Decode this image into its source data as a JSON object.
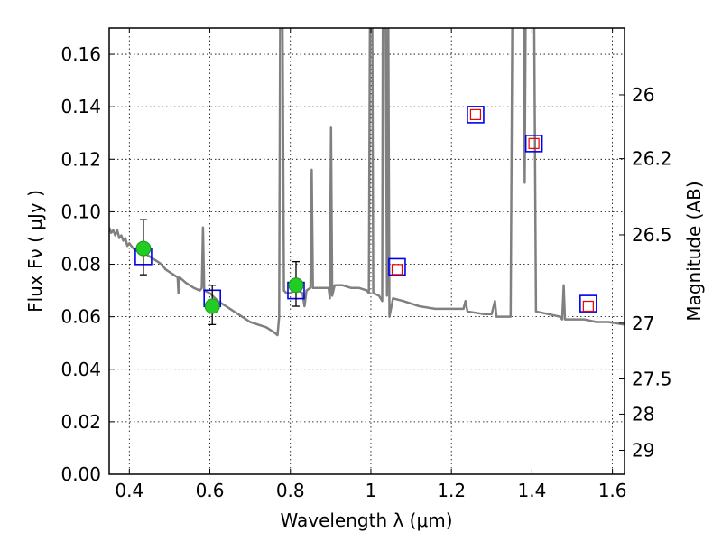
{
  "chart_data": {
    "type": "scatter",
    "xlabel": "Wavelength  λ (μm)",
    "ylabel_left": "Flux  Fν  ( μJy )",
    "ylabel_right": "Magnitude (AB)",
    "xlim": [
      0.35,
      1.63
    ],
    "ylim": [
      0.0,
      0.17
    ],
    "xticks": [
      0.4,
      0.6,
      0.8,
      1.0,
      1.2,
      1.4,
      1.6
    ],
    "xtick_labels": [
      "0.4",
      "0.6",
      "0.8",
      "1",
      "1.2",
      "1.4",
      "1.6"
    ],
    "yticks": [
      0.0,
      0.02,
      0.04,
      0.06,
      0.08,
      0.1,
      0.12,
      0.14,
      0.16
    ],
    "ytick_labels": [
      "0.00",
      "0.02",
      "0.04",
      "0.06",
      "0.08",
      "0.10",
      "0.12",
      "0.14",
      "0.16"
    ],
    "right_axis_ticks": [
      {
        "mag": 26.0,
        "label": "26"
      },
      {
        "mag": 26.2,
        "label": "26.2"
      },
      {
        "mag": 26.5,
        "label": "26.5"
      },
      {
        "mag": 27.0,
        "label": "27"
      },
      {
        "mag": 27.5,
        "label": "27.5"
      },
      {
        "mag": 28.0,
        "label": "28"
      },
      {
        "mag": 29.0,
        "label": "29"
      }
    ],
    "grid": true,
    "series": [
      {
        "kind": "observed",
        "marker": "filled-circle",
        "color": "#22cc22",
        "points": [
          {
            "x": 0.435,
            "y": 0.086,
            "yerr_low": 0.01,
            "yerr_high": 0.011
          },
          {
            "x": 0.606,
            "y": 0.064,
            "yerr_low": 0.007,
            "yerr_high": 0.008
          },
          {
            "x": 0.814,
            "y": 0.072,
            "yerr_low": 0.008,
            "yerr_high": 0.009
          }
        ]
      },
      {
        "kind": "model-band",
        "marker": "open-square",
        "color": "#0000ee",
        "points": [
          {
            "x": 0.435,
            "y": 0.083
          },
          {
            "x": 0.606,
            "y": 0.067
          },
          {
            "x": 0.814,
            "y": 0.07
          },
          {
            "x": 1.065,
            "y": 0.079
          },
          {
            "x": 1.26,
            "y": 0.137
          },
          {
            "x": 1.405,
            "y": 0.126
          },
          {
            "x": 1.54,
            "y": 0.065
          }
        ]
      },
      {
        "kind": "upper-limit",
        "marker": "open-square-small",
        "color": "#ee0000",
        "points": [
          {
            "x": 1.065,
            "y": 0.078
          },
          {
            "x": 1.26,
            "y": 0.137
          },
          {
            "x": 1.405,
            "y": 0.126
          },
          {
            "x": 1.54,
            "y": 0.064
          }
        ]
      }
    ],
    "spectrum": {
      "color": "#808080",
      "points": [
        [
          0.35,
          0.094
        ],
        [
          0.355,
          0.092
        ],
        [
          0.36,
          0.093
        ],
        [
          0.365,
          0.091
        ],
        [
          0.37,
          0.093
        ],
        [
          0.375,
          0.09
        ],
        [
          0.38,
          0.091
        ],
        [
          0.385,
          0.089
        ],
        [
          0.39,
          0.09
        ],
        [
          0.395,
          0.087
        ],
        [
          0.4,
          0.088
        ],
        [
          0.41,
          0.086
        ],
        [
          0.42,
          0.085
        ],
        [
          0.43,
          0.084
        ],
        [
          0.44,
          0.084
        ],
        [
          0.45,
          0.083
        ],
        [
          0.46,
          0.082
        ],
        [
          0.47,
          0.081
        ],
        [
          0.48,
          0.08
        ],
        [
          0.49,
          0.078
        ],
        [
          0.5,
          0.077
        ],
        [
          0.51,
          0.076
        ],
        [
          0.52,
          0.075
        ],
        [
          0.522,
          0.069
        ],
        [
          0.525,
          0.075
        ],
        [
          0.54,
          0.073
        ],
        [
          0.56,
          0.071
        ],
        [
          0.575,
          0.07
        ],
        [
          0.58,
          0.071
        ],
        [
          0.583,
          0.094
        ],
        [
          0.586,
          0.07
        ],
        [
          0.6,
          0.069
        ],
        [
          0.62,
          0.066
        ],
        [
          0.64,
          0.064
        ],
        [
          0.66,
          0.062
        ],
        [
          0.68,
          0.06
        ],
        [
          0.7,
          0.058
        ],
        [
          0.72,
          0.057
        ],
        [
          0.74,
          0.056
        ],
        [
          0.76,
          0.054
        ],
        [
          0.768,
          0.053
        ],
        [
          0.772,
          0.06
        ],
        [
          0.775,
          0.19
        ],
        [
          0.78,
          0.19
        ],
        [
          0.784,
          0.07
        ],
        [
          0.79,
          0.069
        ],
        [
          0.8,
          0.069
        ],
        [
          0.81,
          0.07
        ],
        [
          0.82,
          0.07
        ],
        [
          0.83,
          0.069
        ],
        [
          0.835,
          0.064
        ],
        [
          0.84,
          0.07
        ],
        [
          0.85,
          0.071
        ],
        [
          0.853,
          0.116
        ],
        [
          0.856,
          0.071
        ],
        [
          0.87,
          0.071
        ],
        [
          0.88,
          0.071
        ],
        [
          0.895,
          0.071
        ],
        [
          0.898,
          0.067
        ],
        [
          0.901,
          0.132
        ],
        [
          0.904,
          0.068
        ],
        [
          0.91,
          0.072
        ],
        [
          0.93,
          0.072
        ],
        [
          0.95,
          0.071
        ],
        [
          0.97,
          0.071
        ],
        [
          0.99,
          0.07
        ],
        [
          0.995,
          0.069
        ],
        [
          0.998,
          0.19
        ],
        [
          1.003,
          0.19
        ],
        [
          1.006,
          0.069
        ],
        [
          1.02,
          0.068
        ],
        [
          1.028,
          0.066
        ],
        [
          1.03,
          0.19
        ],
        [
          1.036,
          0.19
        ],
        [
          1.04,
          0.068
        ],
        [
          1.043,
          0.19
        ],
        [
          1.046,
          0.06
        ],
        [
          1.055,
          0.067
        ],
        [
          1.08,
          0.066
        ],
        [
          1.1,
          0.065
        ],
        [
          1.12,
          0.064
        ],
        [
          1.16,
          0.063
        ],
        [
          1.2,
          0.063
        ],
        [
          1.23,
          0.063
        ],
        [
          1.235,
          0.066
        ],
        [
          1.24,
          0.062
        ],
        [
          1.28,
          0.061
        ],
        [
          1.3,
          0.061
        ],
        [
          1.308,
          0.066
        ],
        [
          1.312,
          0.06
        ],
        [
          1.34,
          0.06
        ],
        [
          1.347,
          0.06
        ],
        [
          1.352,
          0.19
        ],
        [
          1.355,
          0.19
        ],
        [
          1.36,
          0.19
        ],
        [
          1.38,
          0.19
        ],
        [
          1.382,
          0.111
        ],
        [
          1.385,
          0.19
        ],
        [
          1.4,
          0.19
        ],
        [
          1.405,
          0.19
        ],
        [
          1.41,
          0.062
        ],
        [
          1.44,
          0.061
        ],
        [
          1.47,
          0.06
        ],
        [
          1.475,
          0.059
        ],
        [
          1.479,
          0.072
        ],
        [
          1.482,
          0.059
        ],
        [
          1.5,
          0.059
        ],
        [
          1.53,
          0.059
        ],
        [
          1.56,
          0.058
        ],
        [
          1.59,
          0.058
        ],
        [
          1.63,
          0.057
        ]
      ]
    }
  }
}
